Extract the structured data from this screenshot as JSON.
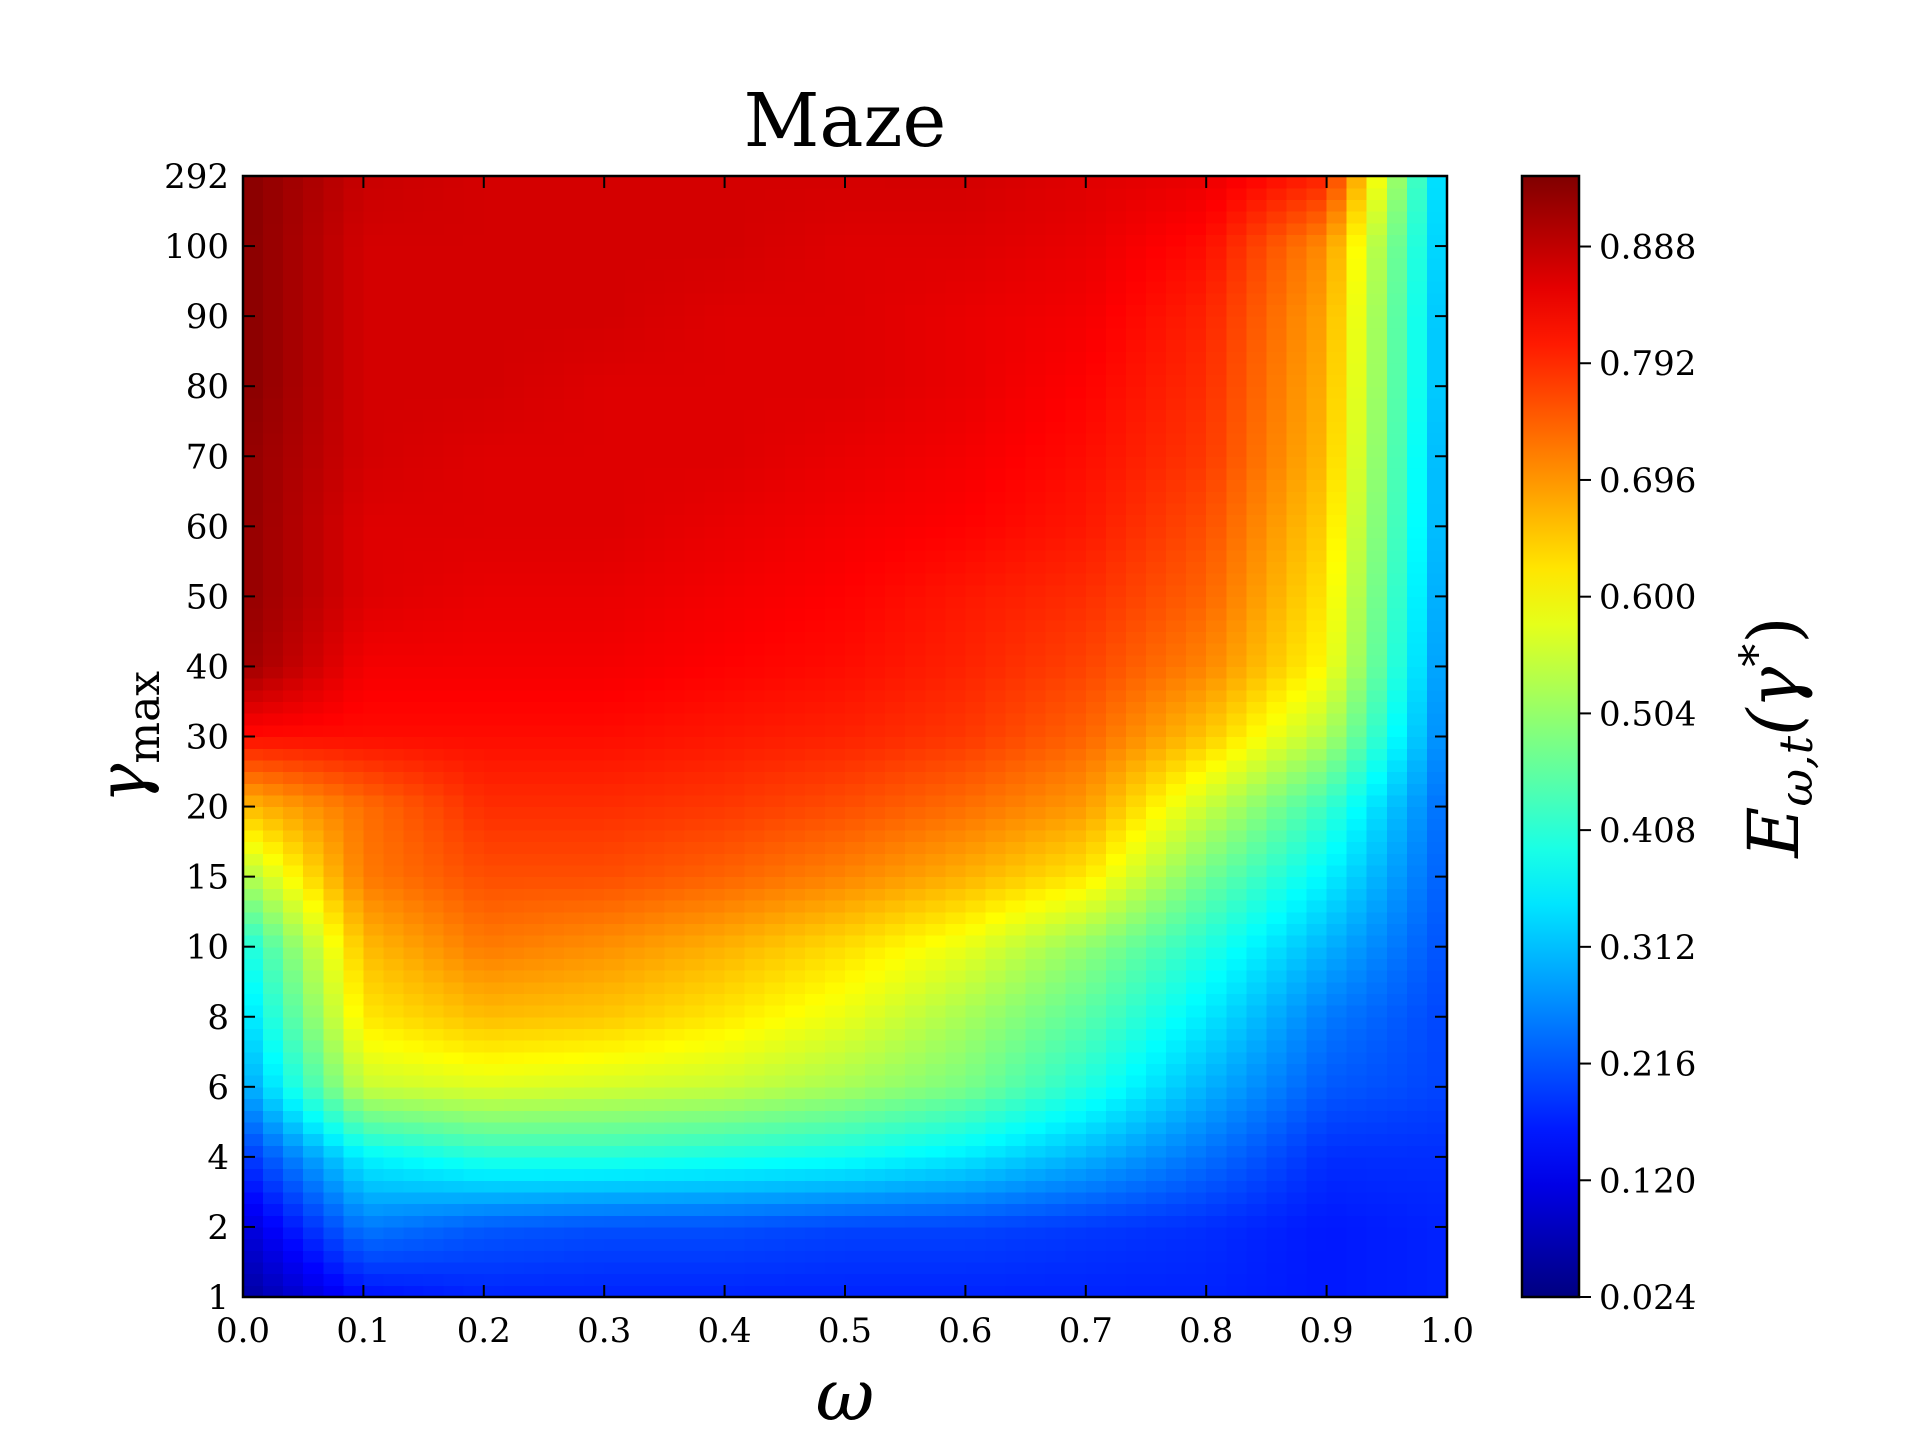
{
  "chart_data": {
    "type": "heatmap",
    "title": "Maze",
    "xlabel": "ω",
    "ylabel": {
      "symbol": "γ",
      "subscript": "max"
    },
    "colorbar_label": {
      "main": "E",
      "sub": "ω,t",
      "arg": "(γ",
      "sup": "*",
      "end": ")"
    },
    "x": [
      0,
      0.1,
      0.2,
      0.3,
      0.4,
      0.5,
      0.6,
      0.7,
      0.8,
      0.9,
      1
    ],
    "xlim": [
      0,
      1
    ],
    "xticks": [
      {
        "value": 0,
        "label": "0.0"
      },
      0.1,
      0.2,
      0.3,
      0.4,
      0.5,
      0.6,
      0.7,
      0.8,
      0.9,
      {
        "value": 1,
        "label": "1.0"
      }
    ],
    "y_categories": [
      1,
      2,
      4,
      6,
      8,
      10,
      15,
      20,
      30,
      40,
      50,
      60,
      70,
      80,
      90,
      100,
      292
    ],
    "z": [
      [
        0.05,
        0.15,
        0.17,
        0.17,
        0.17,
        0.17,
        0.17,
        0.17,
        0.17,
        0.16,
        0.17
      ],
      [
        0.1,
        0.25,
        0.22,
        0.21,
        0.21,
        0.2,
        0.2,
        0.19,
        0.18,
        0.16,
        0.17
      ],
      [
        0.18,
        0.36,
        0.4,
        0.4,
        0.39,
        0.38,
        0.35,
        0.3,
        0.24,
        0.18,
        0.18
      ],
      [
        0.28,
        0.55,
        0.57,
        0.56,
        0.55,
        0.52,
        0.48,
        0.4,
        0.3,
        0.22,
        0.2
      ],
      [
        0.33,
        0.62,
        0.66,
        0.65,
        0.62,
        0.58,
        0.52,
        0.45,
        0.35,
        0.25,
        0.2
      ],
      [
        0.38,
        0.66,
        0.72,
        0.7,
        0.67,
        0.63,
        0.58,
        0.5,
        0.4,
        0.3,
        0.21
      ],
      [
        0.52,
        0.72,
        0.76,
        0.76,
        0.74,
        0.71,
        0.67,
        0.62,
        0.47,
        0.36,
        0.22
      ],
      [
        0.66,
        0.73,
        0.79,
        0.79,
        0.78,
        0.76,
        0.73,
        0.69,
        0.55,
        0.42,
        0.23
      ],
      [
        0.82,
        0.82,
        0.82,
        0.82,
        0.81,
        0.8,
        0.78,
        0.74,
        0.65,
        0.53,
        0.25
      ],
      [
        0.92,
        0.84,
        0.84,
        0.84,
        0.83,
        0.82,
        0.8,
        0.77,
        0.71,
        0.6,
        0.26
      ],
      [
        0.93,
        0.86,
        0.85,
        0.85,
        0.84,
        0.83,
        0.81,
        0.79,
        0.74,
        0.62,
        0.27
      ],
      [
        0.93,
        0.86,
        0.86,
        0.86,
        0.85,
        0.84,
        0.83,
        0.81,
        0.76,
        0.64,
        0.28
      ],
      [
        0.93,
        0.87,
        0.86,
        0.86,
        0.86,
        0.85,
        0.84,
        0.82,
        0.78,
        0.66,
        0.28
      ],
      [
        0.94,
        0.87,
        0.87,
        0.86,
        0.86,
        0.86,
        0.85,
        0.83,
        0.79,
        0.67,
        0.29
      ],
      [
        0.94,
        0.87,
        0.87,
        0.87,
        0.86,
        0.86,
        0.85,
        0.84,
        0.8,
        0.68,
        0.29
      ],
      [
        0.94,
        0.87,
        0.87,
        0.87,
        0.87,
        0.86,
        0.86,
        0.85,
        0.82,
        0.7,
        0.3
      ],
      [
        0.94,
        0.88,
        0.87,
        0.87,
        0.87,
        0.87,
        0.87,
        0.86,
        0.85,
        0.8,
        0.3
      ]
    ],
    "colormap": "jet",
    "clim": [
      0.024,
      0.946
    ],
    "cticks": [
      0.024,
      {
        "value": 0.12,
        "label": "0.120"
      },
      0.216,
      0.312,
      0.408,
      0.504,
      {
        "value": 0.6,
        "label": "0.600"
      },
      0.696,
      0.792,
      0.888
    ]
  }
}
